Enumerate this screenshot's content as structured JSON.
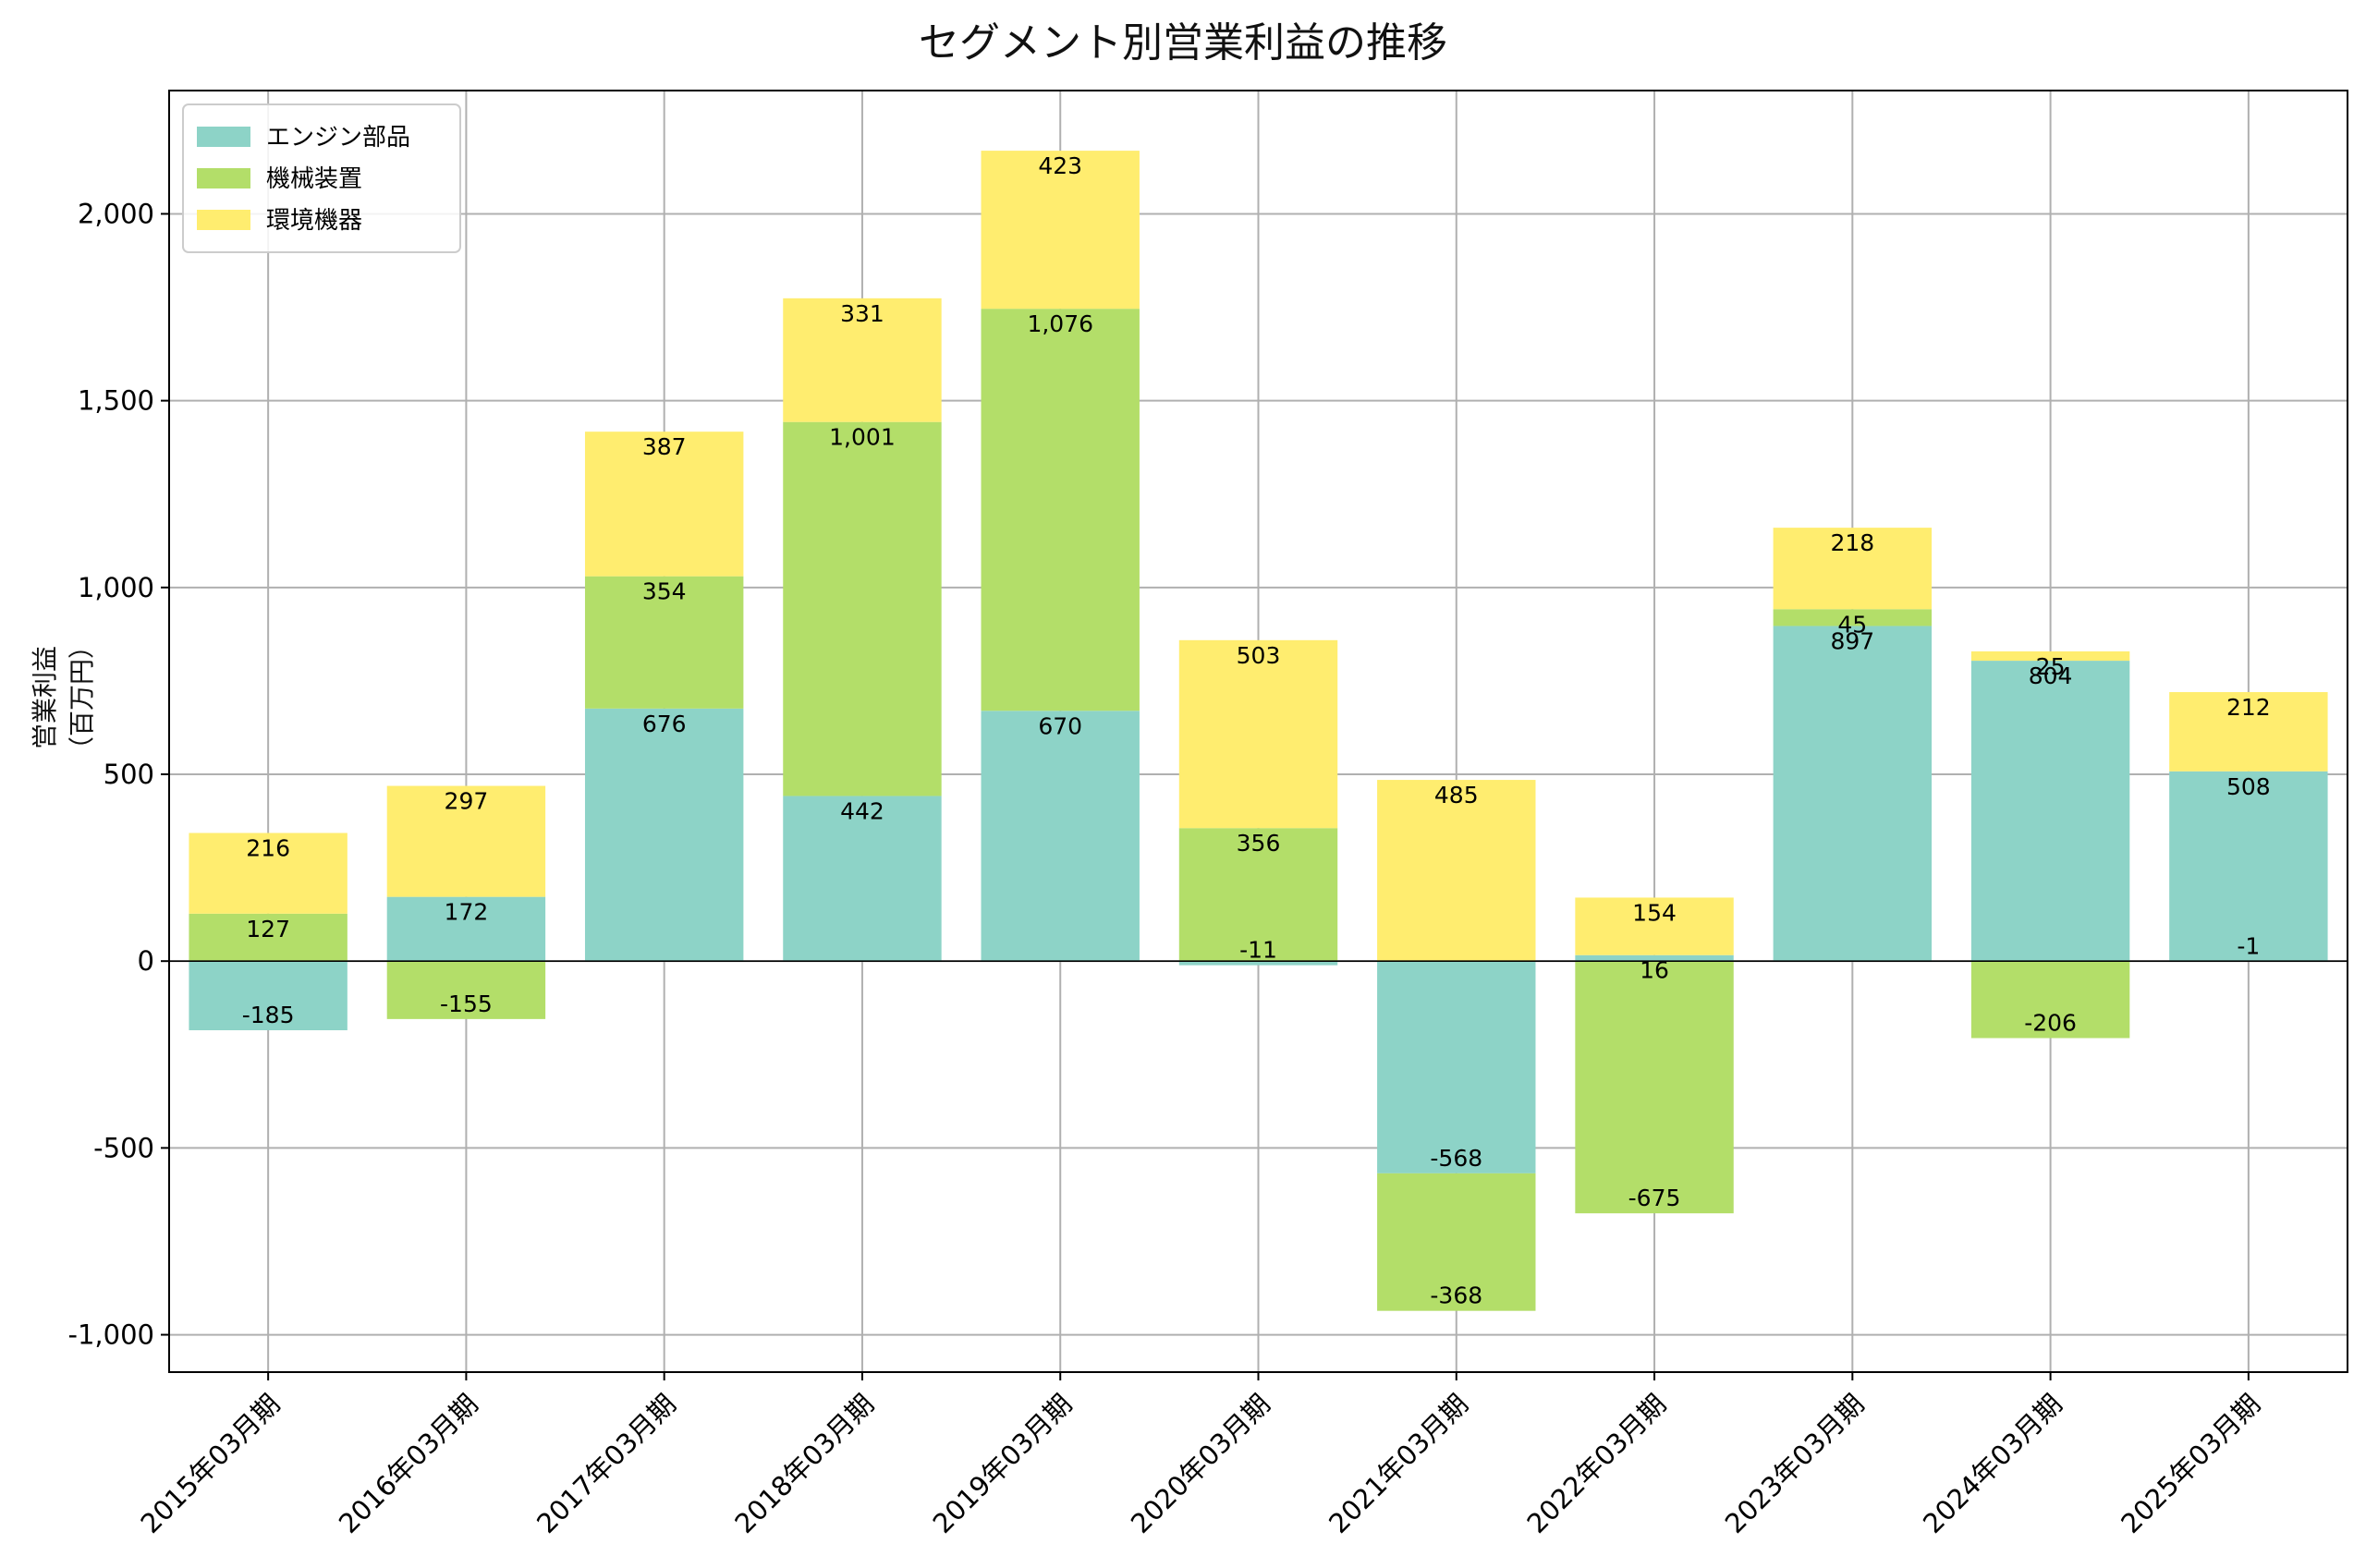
{
  "chart_data": {
    "type": "bar",
    "stacked": true,
    "title": "セグメント別営業利益の推移",
    "ylabel": "営業利益（百万円）",
    "xlabel": "",
    "ylim": [
      -1100,
      2330
    ],
    "yticks": [
      -1000,
      -500,
      0,
      500,
      1000,
      1500,
      2000
    ],
    "ytick_labels": [
      "-1,000",
      "-500",
      "0",
      "500",
      "1,000",
      "1,500",
      "2,000"
    ],
    "grid": true,
    "legend_position": "top-left",
    "categories": [
      "2015年03月期",
      "2016年03月期",
      "2017年03月期",
      "2018年03月期",
      "2019年03月期",
      "2020年03月期",
      "2021年03月期",
      "2022年03月期",
      "2023年03月期",
      "2024年03月期",
      "2025年03月期"
    ],
    "series": [
      {
        "name": "エンジン部品",
        "color": "#8dd3c7",
        "values": [
          -185,
          172,
          676,
          442,
          670,
          -11,
          -568,
          16,
          897,
          804,
          508
        ],
        "labels": [
          "-185",
          "172",
          "676",
          "442",
          "670",
          "-11",
          "-568",
          "16",
          "897",
          "804",
          "508"
        ]
      },
      {
        "name": "機械装置",
        "color": "#b3de69",
        "values": [
          127,
          -155,
          354,
          1001,
          1076,
          356,
          -368,
          -675,
          45,
          -206,
          -1
        ],
        "labels": [
          "127",
          "-155",
          "354",
          "1,001",
          "1,076",
          "356",
          "-368",
          "-675",
          "45",
          "-206",
          "-1"
        ]
      },
      {
        "name": "環境機器",
        "color": "#ffed6f",
        "values": [
          216,
          297,
          387,
          331,
          423,
          503,
          485,
          154,
          218,
          25,
          212
        ],
        "labels": [
          "216",
          "297",
          "387",
          "331",
          "423",
          "503",
          "485",
          "154",
          "218",
          "25",
          "212"
        ]
      }
    ]
  }
}
